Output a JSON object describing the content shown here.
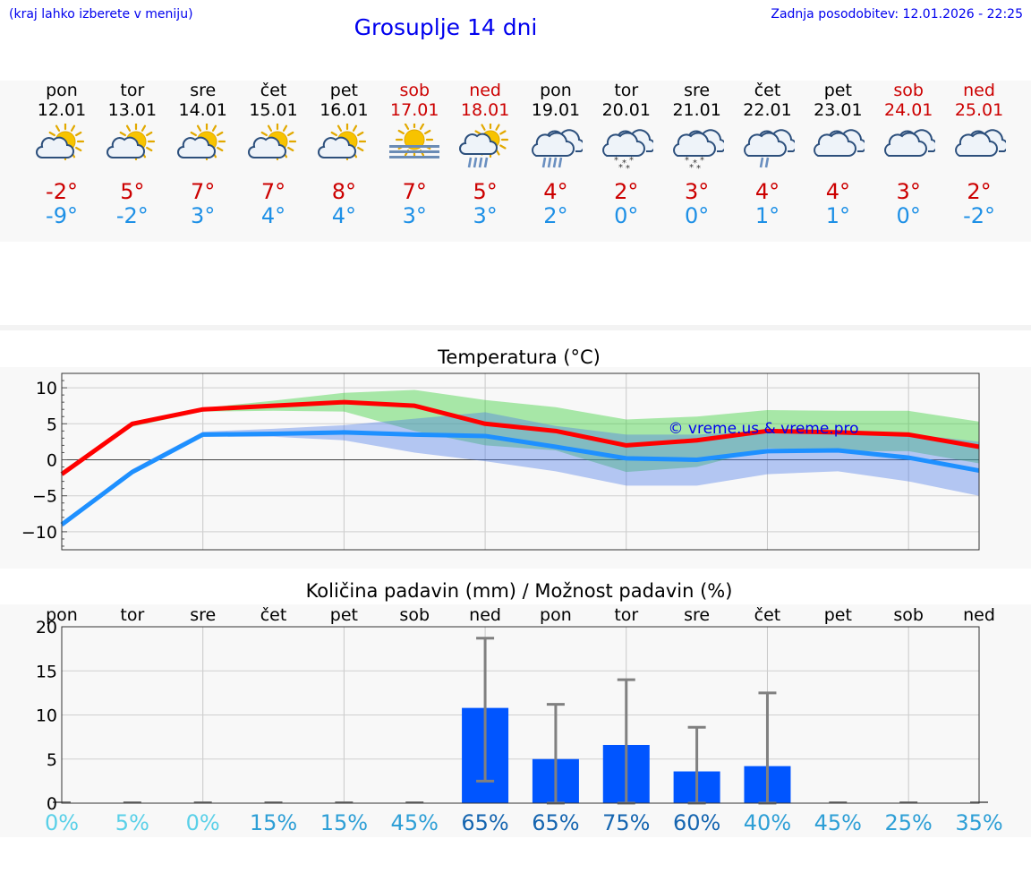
{
  "header": {
    "hint": "(kraj lahko izberete v meniju)",
    "title": "Grosuplje 14 dni",
    "updated": "Zadnja posodobitev: 12.01.2026 - 22:25"
  },
  "days": [
    {
      "name": "pon",
      "date": "12.01",
      "icon": "partly-sunny-icon",
      "tmax": "-2°",
      "tmin": "-9°",
      "weekend": false
    },
    {
      "name": "tor",
      "date": "13.01",
      "icon": "partly-sunny-icon",
      "tmax": "5°",
      "tmin": "-2°",
      "weekend": false
    },
    {
      "name": "sre",
      "date": "14.01",
      "icon": "partly-sunny-icon",
      "tmax": "7°",
      "tmin": "3°",
      "weekend": false
    },
    {
      "name": "čet",
      "date": "15.01",
      "icon": "partly-sunny-icon",
      "tmax": "7°",
      "tmin": "4°",
      "weekend": false
    },
    {
      "name": "pet",
      "date": "16.01",
      "icon": "partly-sunny-icon",
      "tmax": "8°",
      "tmin": "4°",
      "weekend": false
    },
    {
      "name": "sob",
      "date": "17.01",
      "icon": "sunny-fog-icon",
      "tmax": "7°",
      "tmin": "3°",
      "weekend": true
    },
    {
      "name": "ned",
      "date": "18.01",
      "icon": "sun-cloud-rain-icon",
      "tmax": "5°",
      "tmin": "3°",
      "weekend": true
    },
    {
      "name": "pon",
      "date": "19.01",
      "icon": "cloud-rain-icon",
      "tmax": "4°",
      "tmin": "2°",
      "weekend": false
    },
    {
      "name": "tor",
      "date": "20.01",
      "icon": "cloud-snow-icon",
      "tmax": "2°",
      "tmin": "0°",
      "weekend": false
    },
    {
      "name": "sre",
      "date": "21.01",
      "icon": "cloud-snow-icon",
      "tmax": "3°",
      "tmin": "0°",
      "weekend": false
    },
    {
      "name": "čet",
      "date": "22.01",
      "icon": "cloud-light-rain-icon",
      "tmax": "4°",
      "tmin": "1°",
      "weekend": false
    },
    {
      "name": "pet",
      "date": "23.01",
      "icon": "cloudy-icon",
      "tmax": "4°",
      "tmin": "1°",
      "weekend": false
    },
    {
      "name": "sob",
      "date": "24.01",
      "icon": "cloudy-icon",
      "tmax": "3°",
      "tmin": "0°",
      "weekend": true
    },
    {
      "name": "ned",
      "date": "25.01",
      "icon": "cloudy-icon",
      "tmax": "2°",
      "tmin": "-2°",
      "weekend": true
    }
  ],
  "colors": {
    "tmax": "#ff0000",
    "tmin": "#1e90ff",
    "weekend": "#cc0000",
    "band_max": "#2ecc2e",
    "band_min": "#4a7be8",
    "bar": "#0055ff",
    "whisker": "#808080",
    "watermark": "#0000ee"
  },
  "chart_data": [
    {
      "type": "line",
      "title": "Temperatura (°C)",
      "x": [
        0,
        1,
        2,
        3,
        4,
        5,
        6,
        7,
        8,
        9,
        10,
        11,
        12,
        13
      ],
      "ylim": [
        -12.5,
        12
      ],
      "yticks": [
        10,
        5,
        0,
        -5,
        -10
      ],
      "ytick_labels": [
        "10",
        "5",
        "0",
        "−5",
        "−10"
      ],
      "grid": true,
      "watermark": "© vreme.us & vreme.pro",
      "series": [
        {
          "name": "max",
          "values": [
            -2,
            5,
            7,
            7.5,
            8,
            7.5,
            5,
            4,
            2,
            2.7,
            4,
            3.8,
            3.5,
            1.8
          ],
          "band_low": [
            -2,
            4.6,
            6.7,
            6.8,
            6.7,
            4,
            2,
            1.3,
            -1.7,
            -1,
            1.6,
            1.2,
            1.2,
            -0.5
          ],
          "band_high": [
            -1.6,
            5.3,
            7.2,
            8.2,
            9.3,
            9.7,
            8.3,
            7.3,
            5.6,
            6,
            6.9,
            6.8,
            6.8,
            5.3
          ]
        },
        {
          "name": "min",
          "values": [
            -9,
            -1.7,
            3.5,
            3.6,
            3.8,
            3.5,
            3.3,
            1.8,
            0.2,
            0,
            1.2,
            1.3,
            0.3,
            -1.5
          ],
          "band_low": [
            -9.4,
            -2,
            3.2,
            3.2,
            2.7,
            1,
            -0.2,
            -1.6,
            -3.6,
            -3.6,
            -2,
            -1.6,
            -3,
            -5
          ],
          "band_high": [
            -8.7,
            -1.3,
            3.9,
            4.3,
            4.8,
            5.7,
            6.6,
            4.7,
            3.5,
            3.5,
            4,
            4,
            3.6,
            2.5
          ]
        }
      ]
    },
    {
      "type": "bar",
      "title": "Količina padavin (mm) / Možnost padavin (%)",
      "categories": [
        "pon",
        "tor",
        "sre",
        "čet",
        "pet",
        "sob",
        "ned",
        "pon",
        "tor",
        "sre",
        "čet",
        "pet",
        "sob",
        "ned"
      ],
      "values": [
        0,
        0,
        0,
        0,
        0,
        0,
        10.8,
        5,
        6.6,
        3.6,
        4.2,
        0,
        0,
        0
      ],
      "error_low": [
        0,
        0,
        0,
        0,
        0,
        0,
        2.5,
        0,
        0,
        0,
        0,
        0,
        0,
        0
      ],
      "error_high": [
        0,
        0,
        0,
        0,
        0,
        0,
        18.7,
        11.2,
        14,
        8.6,
        12.5,
        0,
        0,
        0
      ],
      "probability": [
        "0%",
        "5%",
        "0%",
        "15%",
        "15%",
        "45%",
        "65%",
        "65%",
        "75%",
        "60%",
        "40%",
        "45%",
        "25%",
        "35%"
      ],
      "probability_values": [
        0,
        5,
        0,
        15,
        15,
        45,
        65,
        65,
        75,
        60,
        40,
        45,
        25,
        35
      ],
      "ylim": [
        0,
        20
      ],
      "yticks": [
        20,
        15,
        10,
        5,
        0
      ],
      "ytick_labels": [
        "20",
        "15",
        "10",
        "5",
        "0"
      ],
      "grid": true
    }
  ]
}
